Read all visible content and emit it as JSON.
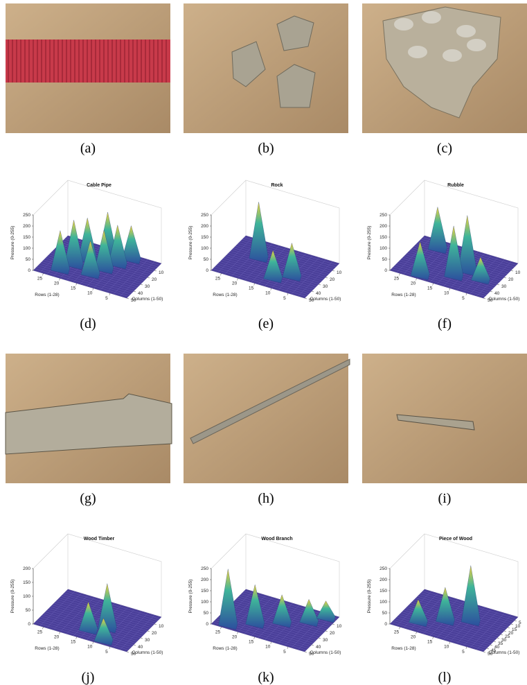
{
  "figure": {
    "panels": [
      {
        "caption": "(a)"
      },
      {
        "caption": "(b)"
      },
      {
        "caption": "(c)"
      },
      {
        "caption": "(d)",
        "title": "Cable Pipe",
        "z_label": "Pressure (0-255)",
        "x_label": "Columns (1-50)",
        "y_label": "Rows (1-28)",
        "z_ticks": [
          0,
          50,
          100,
          150,
          200,
          250
        ],
        "row_ticks": [
          5,
          10,
          15,
          20,
          25
        ],
        "column_ticks": [
          10,
          20,
          30,
          40,
          50
        ]
      },
      {
        "caption": "(e)",
        "title": "Rock",
        "z_label": "Pressure (0-255)",
        "x_label": "Columns (1-50)",
        "y_label": "Rows (1-28)",
        "z_ticks": [
          0,
          50,
          100,
          150,
          200,
          250
        ],
        "row_ticks": [
          5,
          10,
          15,
          20,
          25
        ],
        "column_ticks": [
          10,
          20,
          30,
          40,
          50
        ]
      },
      {
        "caption": "(f)",
        "title": "Rubble",
        "z_label": "Pressure (0-255)",
        "x_label": "Columns (1-50)",
        "y_label": "Rows (1-28)",
        "z_ticks": [
          0,
          50,
          100,
          150,
          200,
          250
        ],
        "row_ticks": [
          5,
          10,
          15,
          20,
          25
        ],
        "column_ticks": [
          10,
          20,
          30,
          40,
          50
        ]
      },
      {
        "caption": "(g)"
      },
      {
        "caption": "(h)"
      },
      {
        "caption": "(i)"
      },
      {
        "caption": "(j)",
        "title": "Wood Timber",
        "z_label": "Pressure (0-255)",
        "x_label": "Columns (1-50)",
        "y_label": "Rows (1-28)",
        "z_ticks": [
          0,
          50,
          100,
          150,
          200
        ],
        "row_ticks": [
          5,
          10,
          15,
          20,
          25
        ],
        "column_ticks": [
          10,
          20,
          30,
          40,
          50
        ]
      },
      {
        "caption": "(k)",
        "title": "Wood Branch",
        "z_label": "Pressure (0-255)",
        "x_label": "Columns (1-50)",
        "y_label": "Rows (1-28)",
        "z_ticks": [
          0,
          50,
          100,
          150,
          200,
          250
        ],
        "row_ticks": [
          5,
          10,
          15,
          20,
          25
        ],
        "column_ticks": [
          10,
          20,
          30,
          40,
          50
        ]
      },
      {
        "caption": "(l)",
        "title": "Piece of Wood",
        "z_label": "Pressure (0-255)",
        "x_label": "Columns (1-50)",
        "y_label": "Rows (1-28)",
        "z_ticks": [
          0,
          50,
          100,
          150,
          200,
          250
        ],
        "row_ticks": [
          5,
          10,
          15,
          20,
          25
        ],
        "column_ticks": [
          5,
          10,
          15,
          20,
          25,
          30,
          35,
          40,
          45,
          50
        ]
      }
    ]
  }
}
